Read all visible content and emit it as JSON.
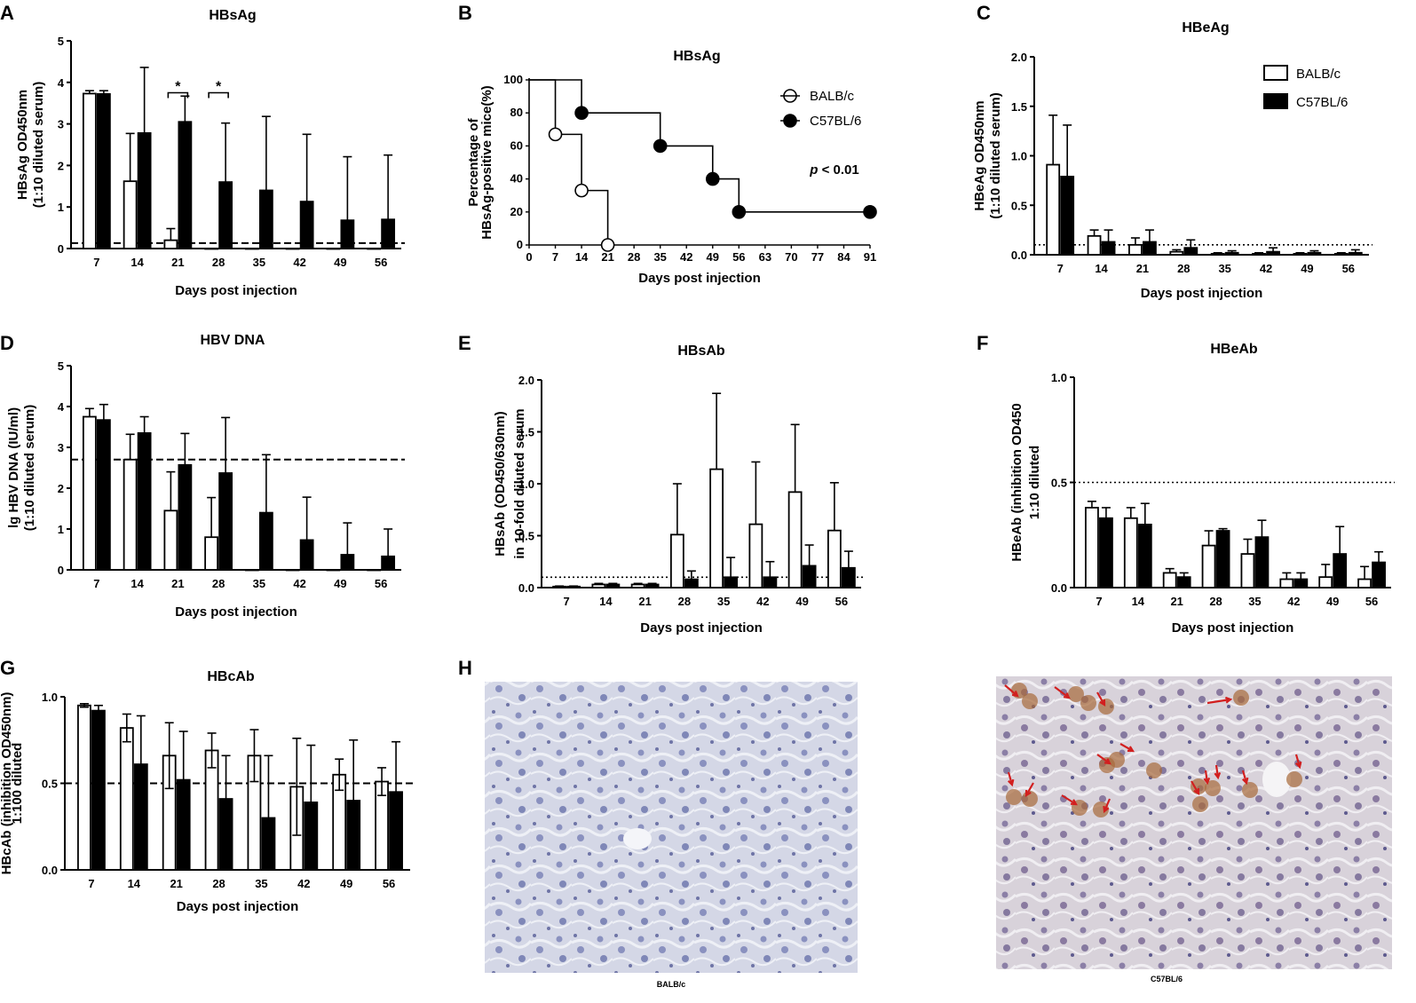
{
  "colors": {
    "control": "#ffffff",
    "treated": "#000000",
    "arrow": "#d21f1f",
    "tissue_bg": "#d9dce9",
    "cell": "#7e86b8",
    "stain": "#a86a3a"
  },
  "panels": {
    "A": "A",
    "B": "B",
    "C": "C",
    "D": "D",
    "E": "E",
    "F": "F",
    "G": "G",
    "H": "H"
  },
  "legend": {
    "series": [
      "BALB/c",
      "C57BL/6"
    ]
  },
  "histology": {
    "left_caption": "BALB/c",
    "right_caption": "C57BL/6"
  },
  "chart_data": [
    {
      "id": "A",
      "type": "bar",
      "title": "HBsAg",
      "xlabel": "Days post injection",
      "ylabel_lines": [
        "HBsAg OD450nm",
        "(1:10 diluted serum)"
      ],
      "categories": [
        "7",
        "14",
        "21",
        "28",
        "35",
        "42",
        "49",
        "56"
      ],
      "ylim": [
        0,
        5
      ],
      "yticks": [
        "0",
        "1",
        "2",
        "3",
        "4",
        "5"
      ],
      "series": [
        {
          "name": "BALB/c",
          "values": [
            3.73,
            1.62,
            0.2,
            0,
            0,
            0,
            0,
            0
          ],
          "errors": [
            0.07,
            1.15,
            0.28,
            0,
            0,
            0,
            0,
            0
          ]
        },
        {
          "name": "C57BL/6",
          "values": [
            3.72,
            2.78,
            3.05,
            1.6,
            1.4,
            1.13,
            0.68,
            0.7
          ],
          "errors": [
            0.08,
            1.58,
            0.62,
            1.42,
            1.78,
            1.62,
            1.53,
            1.55
          ]
        }
      ],
      "cutoff": 0.13,
      "cutoff_style": "dashed",
      "significance": [
        {
          "category": "21",
          "label": "*"
        },
        {
          "category": "28",
          "label": "*"
        }
      ]
    },
    {
      "id": "B",
      "type": "line",
      "title": "HBsAg",
      "xlabel": "Days post injection",
      "ylabel_lines": [
        "Percentage of",
        "HBsAg-positive mice(%)"
      ],
      "xticks": [
        "0",
        "7",
        "14",
        "21",
        "28",
        "35",
        "42",
        "49",
        "56",
        "63",
        "70",
        "77",
        "84",
        "91"
      ],
      "xlim": [
        0,
        91
      ],
      "ylim": [
        0,
        100
      ],
      "yticks": [
        "0",
        "20",
        "40",
        "60",
        "80",
        "100"
      ],
      "series": [
        {
          "name": "BALB/c",
          "steps": [
            [
              0,
              100
            ],
            [
              7,
              100
            ],
            [
              7,
              67
            ],
            [
              14,
              67
            ],
            [
              14,
              33
            ],
            [
              21,
              33
            ],
            [
              21,
              0
            ]
          ],
          "markers": [
            [
              7,
              67
            ],
            [
              14,
              33
            ],
            [
              21,
              0
            ]
          ],
          "marker": "open"
        },
        {
          "name": "C57BL/6",
          "steps": [
            [
              0,
              100
            ],
            [
              14,
              100
            ],
            [
              14,
              80
            ],
            [
              35,
              80
            ],
            [
              35,
              60
            ],
            [
              49,
              60
            ],
            [
              49,
              40
            ],
            [
              56,
              40
            ],
            [
              56,
              20
            ],
            [
              91,
              20
            ]
          ],
          "markers": [
            [
              14,
              80
            ],
            [
              35,
              60
            ],
            [
              49,
              40
            ],
            [
              56,
              20
            ],
            [
              91,
              20
            ]
          ],
          "marker": "filled"
        }
      ],
      "annotation_p": "p",
      "annotation_rest": " < 0.01"
    },
    {
      "id": "C",
      "type": "bar",
      "title": "HBeAg",
      "xlabel": "Days post injection",
      "ylabel_lines": [
        "HBeAg OD450nm",
        "(1:10 diluted serum)"
      ],
      "categories": [
        "7",
        "14",
        "21",
        "28",
        "35",
        "42",
        "49",
        "56"
      ],
      "ylim": [
        0,
        2.0
      ],
      "yticks": [
        "0.0",
        "0.5",
        "1.0",
        "1.5",
        "2.0"
      ],
      "series": [
        {
          "name": "BALB/c",
          "values": [
            0.91,
            0.19,
            0.1,
            0.03,
            0.01,
            0.01,
            0.01,
            0.01
          ],
          "errors": [
            0.5,
            0.06,
            0.07,
            0.02,
            0.01,
            0.01,
            0.01,
            0.01
          ]
        },
        {
          "name": "C57BL/6",
          "values": [
            0.79,
            0.13,
            0.13,
            0.07,
            0.02,
            0.03,
            0.02,
            0.02
          ],
          "errors": [
            0.52,
            0.12,
            0.12,
            0.08,
            0.02,
            0.04,
            0.02,
            0.03
          ]
        }
      ],
      "cutoff": 0.1,
      "cutoff_style": "dotted"
    },
    {
      "id": "D",
      "type": "bar",
      "title": "HBV DNA",
      "xlabel": "Days post injection",
      "ylabel_lines": [
        "lg HBV DNA (IU/ml)",
        "(1:10 diluted serum)"
      ],
      "categories": [
        "7",
        "14",
        "21",
        "28",
        "35",
        "42",
        "49",
        "56"
      ],
      "ylim": [
        0,
        5
      ],
      "yticks": [
        "0",
        "1",
        "2",
        "3",
        "4",
        "5"
      ],
      "series": [
        {
          "name": "BALB/c",
          "values": [
            3.75,
            2.7,
            1.45,
            0.8,
            0,
            0,
            0,
            0
          ],
          "errors": [
            0.2,
            0.62,
            0.95,
            0.97,
            0,
            0,
            0,
            0
          ]
        },
        {
          "name": "C57BL/6",
          "values": [
            3.67,
            3.35,
            2.57,
            2.37,
            1.4,
            0.73,
            0.37,
            0.33
          ],
          "errors": [
            0.38,
            0.4,
            0.77,
            1.36,
            1.42,
            1.05,
            0.78,
            0.67
          ]
        }
      ],
      "cutoff": 2.7,
      "cutoff_style": "dashed"
    },
    {
      "id": "E",
      "type": "bar",
      "title": "HBsAb",
      "xlabel": "Days post injection",
      "ylabel_lines": [
        "HBsAb (OD450/630nm)",
        "in 10-fold diluted serum"
      ],
      "categories": [
        "7",
        "14",
        "21",
        "28",
        "35",
        "42",
        "49",
        "56"
      ],
      "ylim": [
        0,
        2.0
      ],
      "yticks": [
        "0.0",
        "0.5",
        "1.0",
        "1.5",
        "2.0"
      ],
      "series": [
        {
          "name": "BALB/c",
          "values": [
            0.01,
            0.03,
            0.03,
            0.51,
            1.14,
            0.61,
            0.92,
            0.55
          ],
          "errors": [
            0.005,
            0.01,
            0.01,
            0.49,
            0.73,
            0.6,
            0.65,
            0.46
          ]
        },
        {
          "name": "C57BL/6",
          "values": [
            0.01,
            0.03,
            0.03,
            0.08,
            0.1,
            0.1,
            0.21,
            0.19
          ],
          "errors": [
            0.005,
            0.01,
            0.01,
            0.08,
            0.19,
            0.15,
            0.2,
            0.16
          ]
        }
      ],
      "cutoff": 0.1,
      "cutoff_style": "dotted"
    },
    {
      "id": "F",
      "type": "bar",
      "title": "HBeAb",
      "xlabel": "Days post injection",
      "ylabel_lines": [
        "HBeAb (inhibition OD450",
        "1:10 diluted"
      ],
      "categories": [
        "7",
        "14",
        "21",
        "28",
        "35",
        "42",
        "49",
        "56"
      ],
      "ylim": [
        0,
        1.0
      ],
      "yticks": [
        "0.0",
        "0.5",
        "1.0"
      ],
      "series": [
        {
          "name": "BALB/c",
          "values": [
            0.38,
            0.33,
            0.07,
            0.2,
            0.16,
            0.04,
            0.05,
            0.04
          ],
          "errors": [
            0.03,
            0.05,
            0.02,
            0.07,
            0.07,
            0.03,
            0.06,
            0.06
          ]
        },
        {
          "name": "C57BL/6",
          "values": [
            0.33,
            0.3,
            0.05,
            0.27,
            0.24,
            0.04,
            0.16,
            0.12
          ],
          "errors": [
            0.05,
            0.1,
            0.02,
            0.01,
            0.08,
            0.03,
            0.13,
            0.05
          ]
        }
      ],
      "cutoff": 0.5,
      "cutoff_style": "dotted"
    },
    {
      "id": "G",
      "type": "bar",
      "title": "HBcAb",
      "xlabel": "Days post injection",
      "ylabel_lines": [
        "HBcAb (inhibition OD450nm)",
        "1:100 diluted"
      ],
      "categories": [
        "7",
        "14",
        "21",
        "28",
        "35",
        "42",
        "49",
        "56"
      ],
      "ylim": [
        0,
        1.0
      ],
      "yticks": [
        "0.0",
        "0.5",
        "1.0"
      ],
      "series": [
        {
          "name": "BALB/c",
          "values": [
            0.95,
            0.82,
            0.66,
            0.69,
            0.66,
            0.48,
            0.55,
            0.51
          ],
          "errors": [
            0.01,
            0.08,
            0.19,
            0.1,
            0.15,
            0.28,
            0.09,
            0.08
          ]
        },
        {
          "name": "C57BL/6",
          "values": [
            0.92,
            0.61,
            0.52,
            0.41,
            0.3,
            0.39,
            0.4,
            0.45
          ],
          "errors": [
            0.03,
            0.28,
            0.28,
            0.25,
            0.36,
            0.33,
            0.35,
            0.29
          ]
        }
      ],
      "cutoff": 0.5,
      "cutoff_style": "dashed"
    }
  ]
}
